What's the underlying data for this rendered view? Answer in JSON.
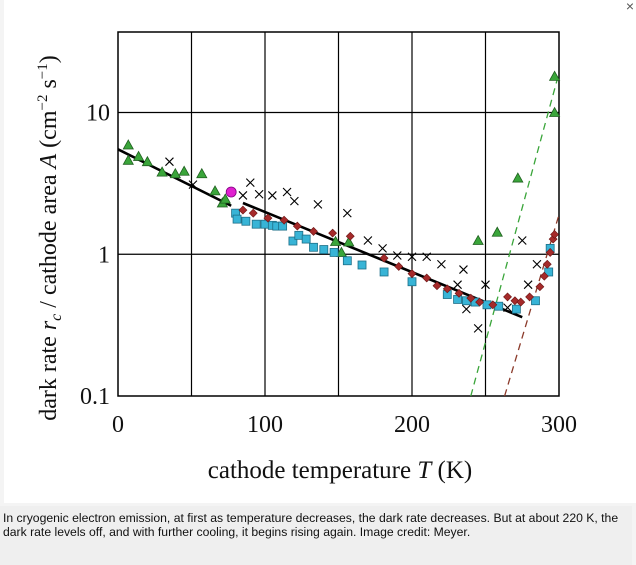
{
  "close_label": "×",
  "caption": "In cryogenic electron emission, at first as temperature decreases, the dark rate decreases. But at about 220 K, the dark rate levels off, and with further cooling, it begins rising again. Image credit: Meyer.",
  "chart_data": {
    "type": "scatter",
    "xlabel": "cathode temperature T (K)",
    "xlabel_parts": {
      "pre": "cathode temperature ",
      "var": "T",
      "post": " (K)"
    },
    "ylabel": "dark rate r_c / cathode area A (cm^-2 s^-1)",
    "ylabel_parts": {
      "pre": "dark rate ",
      "var": "r",
      "sub": "c",
      "mid": " / cathode area ",
      "var2": "A",
      "unit_pre": "  (cm",
      "exp1": "−2",
      "unit_mid": " s",
      "exp2": "−1",
      "unit_post": ")"
    },
    "xlim": [
      0,
      300
    ],
    "ylim": [
      0.1,
      37
    ],
    "yscale": "log",
    "grid": true,
    "xticks": [
      0,
      50,
      100,
      150,
      200,
      250,
      300
    ],
    "xtick_labels": [
      "0",
      "100",
      "200",
      "300"
    ],
    "xtick_label_values": [
      0,
      100,
      200,
      300
    ],
    "yticks": [
      0.1,
      1,
      10
    ],
    "ytick_labels": [
      "0.1",
      "1",
      "10"
    ],
    "colors": {
      "green": "#3aa53a",
      "blue": "#38b4d6",
      "red": "#a52a2a",
      "magenta": "#e020d0",
      "black": "#000000"
    },
    "series": [
      {
        "name": "green-triangles",
        "marker": "triangle",
        "color": "#3aa53a",
        "x": [
          7,
          7,
          14,
          20,
          30,
          39,
          45,
          57,
          66,
          71,
          73,
          148,
          152,
          157,
          245,
          258,
          272,
          297,
          297
        ],
        "y": [
          5.9,
          4.6,
          4.9,
          4.5,
          3.8,
          3.7,
          3.85,
          3.7,
          2.8,
          2.3,
          2.45,
          1.23,
          1.03,
          1.22,
          1.25,
          1.43,
          3.45,
          18,
          10
        ]
      },
      {
        "name": "blue-squares",
        "marker": "square",
        "color": "#38b4d6",
        "x": [
          80,
          81,
          87,
          94,
          100,
          105,
          108,
          112,
          119,
          123,
          128,
          133,
          140,
          147,
          156,
          166,
          181,
          200,
          224,
          231,
          237,
          243,
          251,
          259,
          271,
          284,
          293,
          294
        ],
        "y": [
          1.95,
          1.77,
          1.71,
          1.63,
          1.63,
          1.6,
          1.58,
          1.58,
          1.24,
          1.36,
          1.28,
          1.12,
          1.08,
          1.03,
          0.9,
          0.84,
          0.75,
          0.64,
          0.52,
          0.48,
          0.47,
          0.46,
          0.44,
          0.43,
          0.41,
          0.47,
          0.75,
          1.1
        ]
      },
      {
        "name": "red-diamonds",
        "marker": "diamond",
        "color": "#a52a2a",
        "x": [
          85,
          92,
          102,
          113,
          122,
          133,
          146,
          158,
          181,
          191,
          200,
          210,
          217,
          224,
          232,
          240,
          246,
          255,
          265,
          270,
          274,
          280,
          287,
          290,
          292,
          294,
          296,
          297
        ],
        "y": [
          2.05,
          1.95,
          1.8,
          1.74,
          1.58,
          1.45,
          1.41,
          1.34,
          0.94,
          0.82,
          0.73,
          0.68,
          0.6,
          0.57,
          0.53,
          0.49,
          0.46,
          0.44,
          0.5,
          0.47,
          0.46,
          0.5,
          0.59,
          0.7,
          0.85,
          1.03,
          1.28,
          1.38
        ]
      },
      {
        "name": "black-crosses",
        "marker": "x",
        "color": "#000000",
        "x": [
          35,
          51,
          85,
          90,
          96,
          105,
          115,
          120,
          136,
          156,
          170,
          180,
          190,
          200,
          210,
          220,
          231,
          235,
          237,
          245,
          250,
          265,
          275,
          279,
          285
        ],
        "y": [
          4.5,
          3.1,
          2.6,
          3.2,
          2.65,
          2.6,
          2.75,
          2.37,
          2.25,
          1.95,
          1.25,
          1.1,
          0.98,
          0.96,
          0.96,
          0.85,
          0.61,
          0.78,
          0.41,
          0.3,
          0.61,
          0.42,
          1.25,
          0.61,
          0.85
        ]
      },
      {
        "name": "magenta-circle",
        "marker": "circle",
        "color": "#e020d0",
        "x": [
          77
        ],
        "y": [
          2.75
        ]
      }
    ],
    "lines": [
      {
        "name": "fit-low-temp",
        "style": "solid",
        "color": "#000000",
        "x": [
          0,
          77
        ],
        "y": [
          5.5,
          2.2
        ]
      },
      {
        "name": "fit-mid-temp",
        "style": "solid",
        "color": "#000000",
        "x": [
          85,
          275
        ],
        "y": [
          2.3,
          0.36
        ]
      },
      {
        "name": "green-dashed-fit",
        "style": "dashed",
        "color": "#3aa53a",
        "x": [
          240,
          300
        ],
        "y": [
          0.1,
          19
        ]
      },
      {
        "name": "brown-dashed-fit",
        "style": "dashed",
        "color": "#8b3a2a",
        "x": [
          263,
          300
        ],
        "y": [
          0.1,
          1.9
        ]
      }
    ]
  }
}
